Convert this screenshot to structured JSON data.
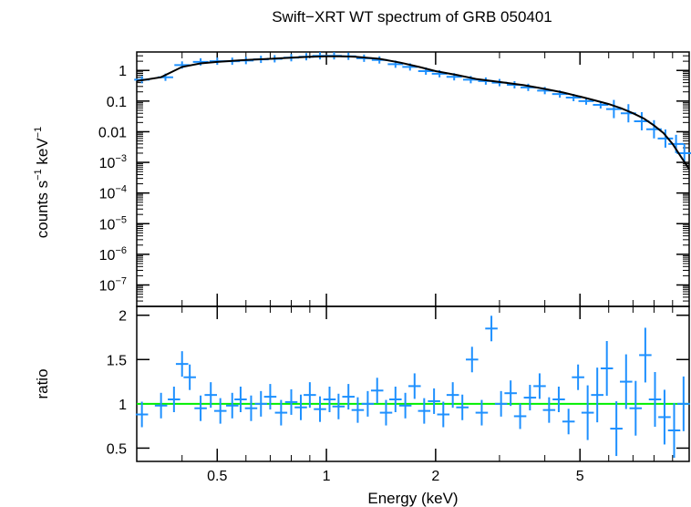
{
  "chart_data": [
    {
      "type": "scatter",
      "title": "Swift−XRT WT spectrum of GRB 050401",
      "xlabel": "Energy (keV)",
      "ylabel_main": "counts s",
      "ylabel_exp1": "−1",
      "ylabel_mid": " keV",
      "ylabel_exp2": "−1",
      "xscale": "log",
      "yscale": "log",
      "xlim": [
        0.3,
        10
      ],
      "ylim": [
        2e-08,
        4
      ],
      "yticks": [
        {
          "label": "1",
          "base": "",
          "exp": ""
        },
        {
          "label": "0.1",
          "base": "",
          "exp": ""
        },
        {
          "label": "0.01",
          "base": "",
          "exp": ""
        },
        {
          "label": "",
          "base": "10",
          "exp": "−3"
        },
        {
          "label": "",
          "base": "10",
          "exp": "−4"
        },
        {
          "label": "",
          "base": "10",
          "exp": "−5"
        },
        {
          "label": "",
          "base": "10",
          "exp": "−6"
        },
        {
          "label": "",
          "base": "10",
          "exp": "−7"
        }
      ],
      "ytick_values": [
        1,
        0.1,
        0.01,
        0.001,
        0.0001,
        1e-05,
        1e-06,
        1e-07
      ],
      "series": [
        {
          "role": "data",
          "color": "#1e90ff",
          "x": [
            0.31,
            0.36,
            0.4,
            0.45,
            0.5,
            0.55,
            0.6,
            0.66,
            0.72,
            0.8,
            0.88,
            0.96,
            1.05,
            1.15,
            1.27,
            1.4,
            1.55,
            1.7,
            1.88,
            2.05,
            2.25,
            2.5,
            2.75,
            3.0,
            3.3,
            3.6,
            4.0,
            4.4,
            4.8,
            5.2,
            5.7,
            6.2,
            6.8,
            7.4,
            8.0,
            8.6,
            9.2,
            9.7
          ],
          "y": [
            0.5,
            0.6,
            1.5,
            1.9,
            2.0,
            2.0,
            2.1,
            2.3,
            2.4,
            2.6,
            2.8,
            3.0,
            3.0,
            2.9,
            2.5,
            2.2,
            1.6,
            1.3,
            0.95,
            0.78,
            0.62,
            0.5,
            0.45,
            0.4,
            0.34,
            0.28,
            0.22,
            0.17,
            0.13,
            0.1,
            0.075,
            0.055,
            0.04,
            0.022,
            0.012,
            0.006,
            0.004,
            0.002
          ]
        },
        {
          "role": "model",
          "color": "#000000",
          "x": [
            0.3,
            0.35,
            0.4,
            0.45,
            0.5,
            0.6,
            0.7,
            0.8,
            0.9,
            1.0,
            1.1,
            1.2,
            1.4,
            1.6,
            1.8,
            2.0,
            2.3,
            2.6,
            3.0,
            3.5,
            4.0,
            4.5,
            5.0,
            5.5,
            6.0,
            6.5,
            7.0,
            7.5,
            8.0,
            8.5,
            9.0,
            9.5,
            10.0
          ],
          "y": [
            0.45,
            0.6,
            1.3,
            1.7,
            1.9,
            2.2,
            2.4,
            2.6,
            2.8,
            2.9,
            2.9,
            2.8,
            2.4,
            1.8,
            1.3,
            0.95,
            0.7,
            0.52,
            0.42,
            0.33,
            0.25,
            0.19,
            0.14,
            0.105,
            0.08,
            0.058,
            0.04,
            0.027,
            0.016,
            0.009,
            0.004,
            0.0015,
            0.0006
          ]
        }
      ]
    },
    {
      "type": "scatter",
      "xlabel": "Energy (keV)",
      "ylabel": "ratio",
      "xscale": "log",
      "yscale": "linear",
      "xlim": [
        0.3,
        10
      ],
      "ylim": [
        0.35,
        2.1
      ],
      "yticks": [
        "0.5",
        "1",
        "1.5",
        "2"
      ],
      "ytick_values": [
        0.5,
        1,
        1.5,
        2
      ],
      "xticks": [
        "0.5",
        "1",
        "2",
        "5"
      ],
      "xtick_values": [
        0.5,
        1,
        2,
        5
      ],
      "reference_line": {
        "y": 1,
        "color": "#00ee00"
      },
      "series": [
        {
          "role": "ratio",
          "color": "#1e90ff",
          "x": [
            0.31,
            0.35,
            0.38,
            0.4,
            0.42,
            0.45,
            0.48,
            0.51,
            0.55,
            0.58,
            0.62,
            0.66,
            0.7,
            0.75,
            0.8,
            0.85,
            0.9,
            0.96,
            1.02,
            1.08,
            1.15,
            1.22,
            1.3,
            1.38,
            1.46,
            1.55,
            1.65,
            1.75,
            1.86,
            1.98,
            2.1,
            2.23,
            2.37,
            2.52,
            2.68,
            2.85,
            3.03,
            3.22,
            3.42,
            3.64,
            3.87,
            4.11,
            4.37,
            4.65,
            4.94,
            5.25,
            5.58,
            5.93,
            6.3,
            6.7,
            7.12,
            7.57,
            8.05,
            8.55,
            9.09,
            9.65
          ],
          "y": [
            0.88,
            0.98,
            1.05,
            1.45,
            1.3,
            0.95,
            1.1,
            0.92,
            0.98,
            1.05,
            0.95,
            1.0,
            1.08,
            0.9,
            1.02,
            0.96,
            1.1,
            0.94,
            1.05,
            0.97,
            1.08,
            0.93,
            1.0,
            1.15,
            0.9,
            1.05,
            0.98,
            1.2,
            0.92,
            1.03,
            0.88,
            1.1,
            0.96,
            1.5,
            0.9,
            1.85,
            1.0,
            1.12,
            0.86,
            1.07,
            1.2,
            0.93,
            1.05,
            0.8,
            1.3,
            0.9,
            1.1,
            1.4,
            0.72,
            1.25,
            0.95,
            1.55,
            1.05,
            0.85,
            0.7,
            1.0
          ]
        }
      ]
    }
  ]
}
